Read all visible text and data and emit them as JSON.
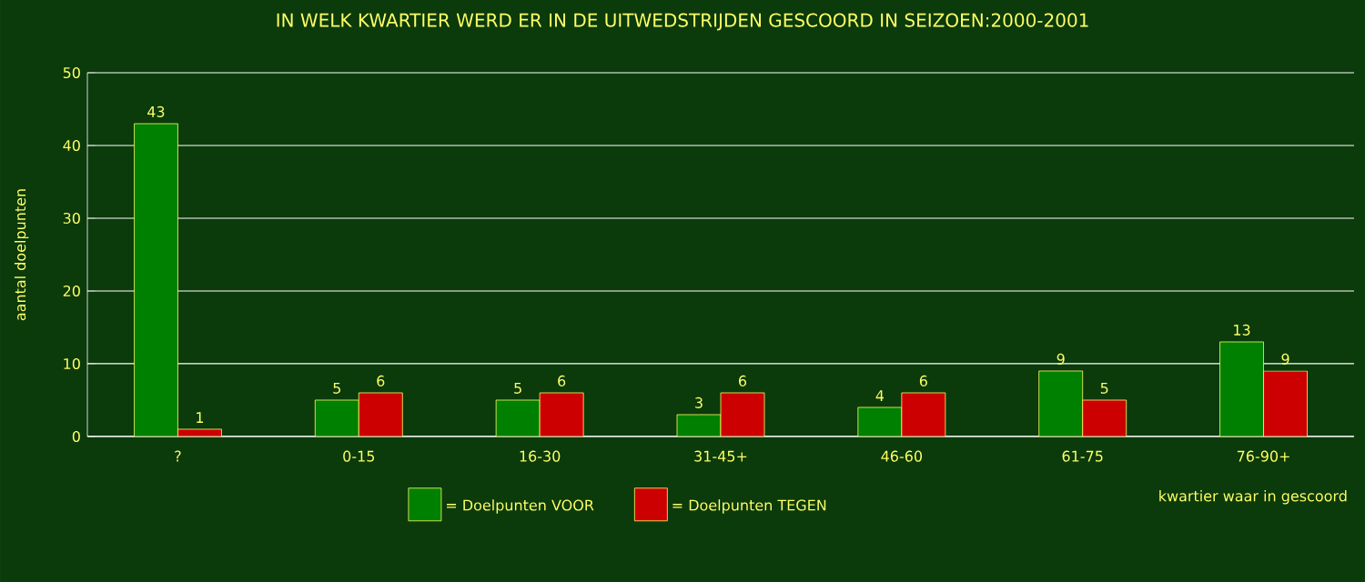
{
  "chart_data": {
    "type": "bar",
    "title": "IN WELK KWARTIER WERD ER IN DE UITWEDSTRIJDEN GESCOORD IN SEIZOEN:2000-2001",
    "xlabel": "kwartier waar in gescoord",
    "ylabel": "aantal doelpunten",
    "categories": [
      "?",
      "0-15",
      "16-30",
      "31-45+",
      "46-60",
      "61-75",
      "76-90+"
    ],
    "series": [
      {
        "name": "= Doelpunten VOOR",
        "color": "#008000",
        "values": [
          43,
          5,
          5,
          3,
          4,
          9,
          13
        ]
      },
      {
        "name": "= Doelpunten TEGEN",
        "color": "#cc0000",
        "values": [
          1,
          6,
          6,
          6,
          6,
          5,
          9
        ]
      }
    ],
    "ylim": [
      0,
      50
    ],
    "yticks": [
      0,
      10,
      20,
      30,
      40,
      50
    ],
    "grid": "y",
    "legend": "bottom",
    "data_labels": true
  }
}
